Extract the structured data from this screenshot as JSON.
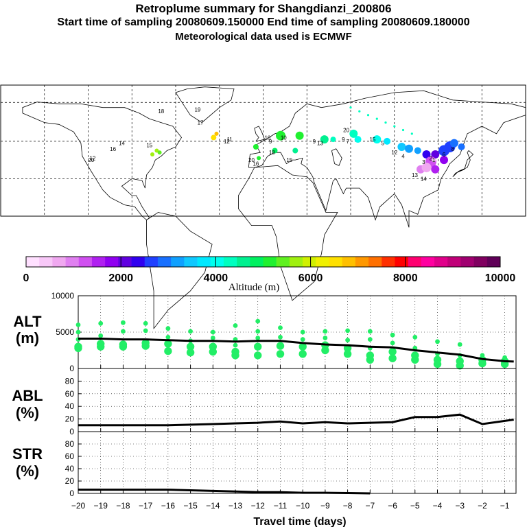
{
  "header": {
    "title": "Retroplume summary for Shangdianzi_200806",
    "subtitle": "Start time of sampling 20080609.150000     End time of sampling 20080609.180000",
    "met_line": "Meteorological data used is ECMWF"
  },
  "colorbar": {
    "label": "Altitude (m)",
    "ticks": [
      "0",
      "2000",
      "4000",
      "6000",
      "8000",
      "10000"
    ],
    "range": [
      0,
      10000
    ],
    "colors": [
      "#ffe0ff",
      "#f8c8f8",
      "#f0a8f0",
      "#e080f0",
      "#d050f0",
      "#b020f0",
      "#9000f0",
      "#6000e0",
      "#3000f0",
      "#2040ff",
      "#1870ff",
      "#10a0ff",
      "#10c8ff",
      "#00e8ff",
      "#00ffee",
      "#00ffc0",
      "#00f090",
      "#00f060",
      "#20f030",
      "#60f020",
      "#a0f010",
      "#d0f000",
      "#f0f000",
      "#ffe000",
      "#ffc000",
      "#ff9800",
      "#ff7000",
      "#ff3000",
      "#ff0000",
      "#ff0070",
      "#ff00a0",
      "#e0008a",
      "#c00078",
      "#a00070",
      "#800060",
      "#600058"
    ]
  },
  "map": {
    "name": "world-map-plume",
    "points": [
      {
        "d": "19",
        "lon": -45,
        "lat": 67
      },
      {
        "d": "18",
        "lon": -70,
        "lat": 66
      },
      {
        "d": "17",
        "lon": -43,
        "lat": 60
      },
      {
        "d": "15",
        "lon": -78,
        "lat": 48
      },
      {
        "d": "14",
        "lon": -97,
        "lat": 49
      },
      {
        "d": "16",
        "lon": -103,
        "lat": 46
      },
      {
        "d": "12",
        "lon": -117,
        "lat": 41
      },
      {
        "d": "20",
        "lon": -118,
        "lat": 40
      },
      {
        "d": "12",
        "lon": -25,
        "lat": 50
      },
      {
        "d": "11",
        "lon": -23,
        "lat": 51
      },
      {
        "d": "10",
        "lon": 3,
        "lat": 52
      },
      {
        "d": "9",
        "lon": 5,
        "lat": 50
      },
      {
        "d": "10",
        "lon": 14,
        "lat": 52
      },
      {
        "d": "9",
        "lon": 35,
        "lat": 50
      },
      {
        "d": "13",
        "lon": 39,
        "lat": 49
      },
      {
        "d": "20",
        "lon": 57,
        "lat": 56
      },
      {
        "d": "9",
        "lon": 55,
        "lat": 51
      },
      {
        "d": "7",
        "lon": 58,
        "lat": 50
      },
      {
        "d": "15",
        "lon": 75,
        "lat": 51
      },
      {
        "d": "5",
        "lon": 82,
        "lat": 49
      },
      {
        "d": "12",
        "lon": 90,
        "lat": 44
      },
      {
        "d": "4",
        "lon": 96,
        "lat": 42
      },
      {
        "d": "3",
        "lon": 110,
        "lat": 39
      },
      {
        "d": "2",
        "lon": 115,
        "lat": 41
      },
      {
        "d": "1",
        "lon": 117,
        "lat": 40
      },
      {
        "d": "6",
        "lon": 124,
        "lat": 43
      },
      {
        "d": "8",
        "lon": 130,
        "lat": 46
      },
      {
        "d": "16",
        "lon": -5,
        "lat": 38
      },
      {
        "d": "18",
        "lon": 6,
        "lat": 44
      },
      {
        "d": "20",
        "lon": -8,
        "lat": 40
      },
      {
        "d": "15",
        "lon": 18,
        "lat": 40
      },
      {
        "d": "13",
        "lon": 104,
        "lat": 32
      },
      {
        "d": "14",
        "lon": 110,
        "lat": 30
      }
    ]
  },
  "chart_data": [
    {
      "type": "scatter",
      "panel": "ALT",
      "ylabel": "ALT\n(m)",
      "ylabel_line1": "ALT",
      "ylabel_line2": "(m)",
      "xlabel": "Travel time (days)",
      "xlim": [
        -20,
        -0.5
      ],
      "ylim": [
        0,
        10000
      ],
      "yticks": [
        "0",
        "5000",
        "10000"
      ],
      "xticks": [
        "-20",
        "-19",
        "-18",
        "-17",
        "-16",
        "-15",
        "-14",
        "-13",
        "-12",
        "-11",
        "-10",
        "-9",
        "-8",
        "-7",
        "-6",
        "-5",
        "-4",
        "-3",
        "-2",
        "-1"
      ],
      "mean_line": {
        "x": [
          -20,
          -19,
          -18,
          -17,
          -16,
          -15,
          -14,
          -13,
          -12,
          -11,
          -10,
          -9,
          -8,
          -7,
          -6,
          -5,
          -4,
          -3,
          -2,
          -1,
          -0.6
        ],
        "y": [
          4100,
          4100,
          4000,
          4000,
          3900,
          3800,
          3800,
          3700,
          3800,
          3800,
          3500,
          3300,
          3200,
          3000,
          2900,
          2500,
          2200,
          1900,
          1300,
          1000,
          950
        ]
      },
      "clusters": [
        {
          "x": -20,
          "y": [
            6000,
            5000,
            4000,
            3000,
            2800
          ]
        },
        {
          "x": -19,
          "y": [
            6200,
            4500,
            3400,
            3000
          ]
        },
        {
          "x": -18,
          "y": [
            6300,
            5100,
            3300,
            3000
          ]
        },
        {
          "x": -17,
          "y": [
            6200,
            5200,
            3500,
            3100
          ]
        },
        {
          "x": -16,
          "y": [
            5500,
            4300,
            3400,
            2400
          ]
        },
        {
          "x": -15,
          "y": [
            5100,
            3800,
            3000,
            2200
          ]
        },
        {
          "x": -14,
          "y": [
            5000,
            4200,
            3000,
            2300
          ]
        },
        {
          "x": -13,
          "y": [
            5900,
            4000,
            3200,
            2300,
            1800
          ]
        },
        {
          "x": -12,
          "y": [
            6500,
            5100,
            4200,
            3000,
            1800
          ]
        },
        {
          "x": -11,
          "y": [
            5600,
            4300,
            3100,
            2000
          ]
        },
        {
          "x": -10,
          "y": [
            5000,
            4000,
            3000,
            2000
          ]
        },
        {
          "x": -9,
          "y": [
            5100,
            4200,
            3200,
            2500
          ]
        },
        {
          "x": -8,
          "y": [
            5200,
            3900,
            2800,
            2000
          ]
        },
        {
          "x": -7,
          "y": [
            5100,
            4000,
            2800,
            1800,
            1200
          ]
        },
        {
          "x": -6,
          "y": [
            4600,
            3500,
            2300,
            1400
          ]
        },
        {
          "x": -5,
          "y": [
            4300,
            2800,
            1800,
            1200
          ]
        },
        {
          "x": -4,
          "y": [
            3700,
            2000,
            1200,
            600
          ]
        },
        {
          "x": -3,
          "y": [
            3300,
            1800,
            1000,
            400
          ]
        },
        {
          "x": -2,
          "y": [
            1800,
            1200,
            700
          ]
        },
        {
          "x": -1,
          "y": [
            1500,
            1000,
            600
          ]
        }
      ]
    },
    {
      "type": "line",
      "panel": "ABL",
      "ylabel_line1": "ABL",
      "ylabel_line2": "(%)",
      "ylim": [
        0,
        100
      ],
      "yticks": [
        "0",
        "20",
        "40",
        "60",
        "80"
      ],
      "x": [
        -20,
        -19,
        -18,
        -17,
        -16,
        -15,
        -14,
        -13,
        -12,
        -11,
        -10,
        -9,
        -8,
        -7,
        -6,
        -5,
        -4,
        -3,
        -2,
        -1,
        -0.6
      ],
      "y": [
        10,
        10,
        10,
        10,
        10,
        11,
        12,
        13,
        14,
        16,
        13,
        15,
        13,
        14,
        15,
        23,
        23,
        27,
        12,
        17,
        19
      ]
    },
    {
      "type": "line",
      "panel": "STR",
      "ylabel_line1": "STR",
      "ylabel_line2": "(%)",
      "ylim": [
        0,
        100
      ],
      "yticks": [
        "0",
        "20",
        "40",
        "60",
        "80"
      ],
      "x": [
        -20,
        -19,
        -18,
        -17,
        -16,
        -15,
        -14,
        -13,
        -12,
        -11,
        -10,
        -9,
        -8,
        -7
      ],
      "y": [
        6,
        6,
        6,
        6,
        6,
        5,
        4,
        3,
        2,
        2,
        1,
        1,
        0.5,
        0
      ]
    }
  ]
}
